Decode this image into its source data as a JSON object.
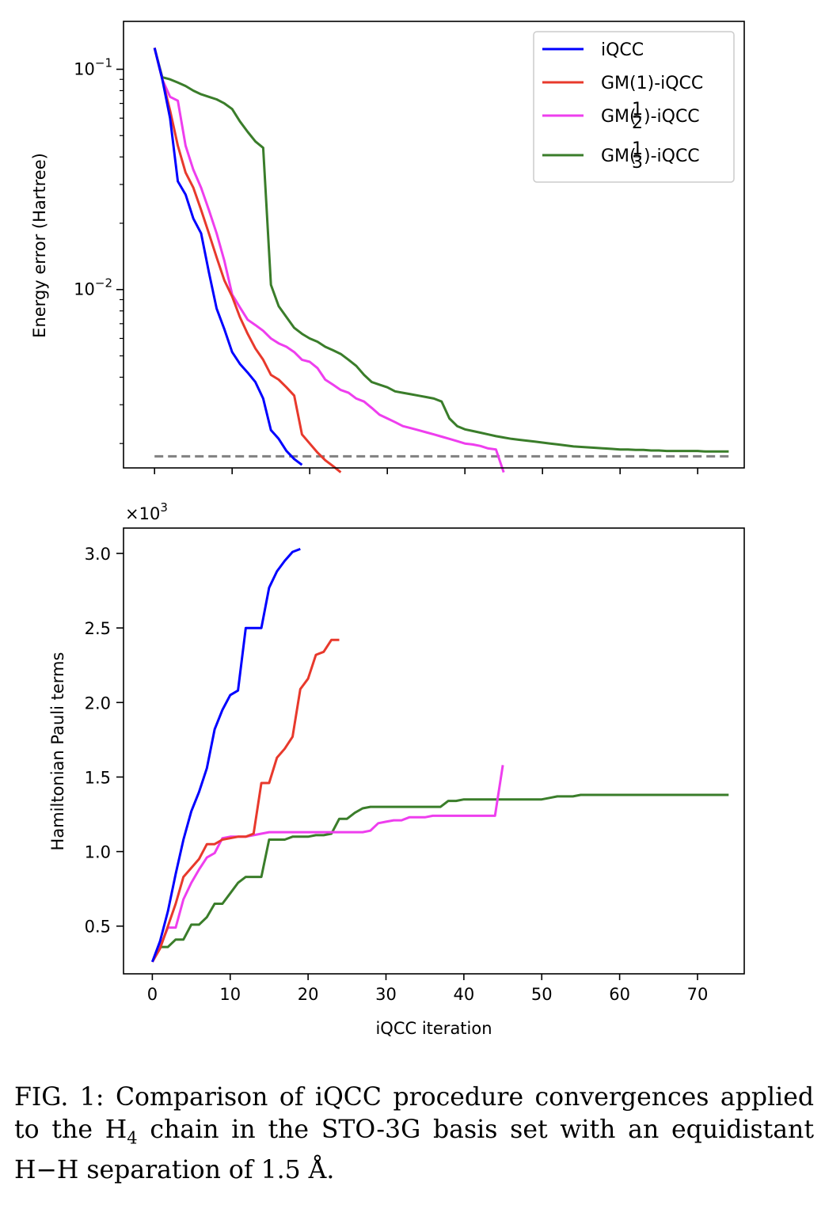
{
  "colors": {
    "iqcc": "#0000ff",
    "gm1": "#e8392c",
    "gmhalf": "#ee3eee",
    "gmthird": "#3a7d2a",
    "reference": "#808080",
    "axes": "#000000"
  },
  "caption": {
    "lead": "FIG. 1:",
    "part1": "Comparison of iQCC procedure convergences applied to the H",
    "subscript": "4",
    "part2": " chain in the STO-3G basis set with an equidistant H−H separation of 1.5 Å."
  },
  "chart_data": [
    {
      "type": "line",
      "name": "energy-error",
      "yscale": "log",
      "xlabel": "",
      "ylabel": "Energy error (Hartree)",
      "xlim": [
        -4,
        76
      ],
      "ylim": [
        0.00155,
        0.165
      ],
      "yticks": [
        {
          "value": 0.1,
          "mant": "10",
          "exp": "−1"
        },
        {
          "value": 0.01,
          "mant": "10",
          "exp": "−2"
        }
      ],
      "reference_line": {
        "value": 0.00175,
        "x": [
          0,
          74
        ],
        "style": "dashed"
      },
      "legend_position": "top-right",
      "series": [
        {
          "key": "iqcc",
          "label_pre": "iQCC",
          "frac_num": "",
          "frac_den": "",
          "label_post": "",
          "x": [
            0,
            1,
            2,
            3,
            4,
            5,
            6,
            7,
            8,
            9,
            10,
            11,
            12,
            13,
            14,
            15,
            16,
            17,
            18,
            19
          ],
          "y": [
            0.125,
            0.09,
            0.06,
            0.031,
            0.027,
            0.021,
            0.018,
            0.012,
            0.0082,
            0.0066,
            0.0052,
            0.0046,
            0.0042,
            0.0038,
            0.0032,
            0.0023,
            0.0021,
            0.00185,
            0.0017,
            0.0016
          ]
        },
        {
          "key": "gm1",
          "label_pre": "GM(1)-iQCC",
          "frac_num": "",
          "frac_den": "",
          "label_post": "",
          "x": [
            0,
            1,
            2,
            3,
            4,
            5,
            6,
            7,
            8,
            9,
            10,
            11,
            12,
            13,
            14,
            15,
            16,
            17,
            18,
            19,
            20,
            21,
            22,
            23,
            24
          ],
          "y": [
            0.125,
            0.09,
            0.065,
            0.045,
            0.034,
            0.029,
            0.023,
            0.018,
            0.014,
            0.011,
            0.0093,
            0.0075,
            0.0063,
            0.0054,
            0.0048,
            0.0041,
            0.0039,
            0.0036,
            0.0033,
            0.0022,
            0.002,
            0.00182,
            0.00168,
            0.00158,
            0.00148
          ]
        },
        {
          "key": "gmhalf",
          "label_pre": "GM(",
          "frac_num": "1",
          "frac_den": "2",
          "label_post": ")-iQCC",
          "x": [
            0,
            1,
            2,
            3,
            4,
            5,
            6,
            7,
            8,
            9,
            10,
            11,
            12,
            13,
            14,
            15,
            16,
            17,
            18,
            19,
            20,
            21,
            22,
            23,
            24,
            25,
            26,
            27,
            28,
            29,
            30,
            31,
            32,
            33,
            34,
            35,
            36,
            37,
            38,
            39,
            40,
            41,
            42,
            43,
            44,
            45
          ],
          "y": [
            0.125,
            0.09,
            0.075,
            0.072,
            0.045,
            0.035,
            0.029,
            0.023,
            0.018,
            0.0135,
            0.0095,
            0.0083,
            0.0073,
            0.0069,
            0.0065,
            0.006,
            0.0057,
            0.0055,
            0.0052,
            0.0048,
            0.0047,
            0.0044,
            0.0039,
            0.0037,
            0.0035,
            0.0034,
            0.0032,
            0.0031,
            0.0029,
            0.0027,
            0.0026,
            0.0025,
            0.0024,
            0.00235,
            0.0023,
            0.00225,
            0.0022,
            0.00215,
            0.0021,
            0.00205,
            0.002,
            0.00198,
            0.00195,
            0.0019,
            0.00188,
            0.00148
          ]
        },
        {
          "key": "gmthird",
          "label_pre": "GM(",
          "frac_num": "1",
          "frac_den": "3",
          "label_post": ")-iQCC",
          "x": [
            0,
            1,
            2,
            3,
            4,
            5,
            6,
            7,
            8,
            9,
            10,
            11,
            12,
            13,
            14,
            15,
            16,
            17,
            18,
            19,
            20,
            21,
            22,
            23,
            24,
            25,
            26,
            27,
            28,
            29,
            30,
            31,
            32,
            33,
            34,
            35,
            36,
            37,
            38,
            39,
            40,
            41,
            42,
            43,
            44,
            45,
            46,
            47,
            48,
            49,
            50,
            51,
            52,
            53,
            54,
            55,
            56,
            57,
            58,
            59,
            60,
            61,
            62,
            63,
            64,
            65,
            66,
            67,
            68,
            69,
            70,
            71,
            72,
            73,
            74
          ],
          "y": [
            0.125,
            0.092,
            0.09,
            0.087,
            0.084,
            0.08,
            0.077,
            0.075,
            0.073,
            0.07,
            0.066,
            0.058,
            0.052,
            0.047,
            0.044,
            0.0105,
            0.0084,
            0.0075,
            0.0067,
            0.0063,
            0.006,
            0.0058,
            0.0055,
            0.0053,
            0.0051,
            0.0048,
            0.0045,
            0.0041,
            0.0038,
            0.0037,
            0.0036,
            0.00345,
            0.0034,
            0.00335,
            0.0033,
            0.00325,
            0.0032,
            0.0031,
            0.0026,
            0.0024,
            0.00232,
            0.00228,
            0.00224,
            0.0022,
            0.00216,
            0.00213,
            0.0021,
            0.00208,
            0.00206,
            0.00204,
            0.00202,
            0.002,
            0.00198,
            0.00196,
            0.00194,
            0.00193,
            0.00192,
            0.00191,
            0.0019,
            0.00189,
            0.00188,
            0.00188,
            0.00187,
            0.00187,
            0.00186,
            0.00186,
            0.00185,
            0.00185,
            0.00185,
            0.00185,
            0.00185,
            0.00184,
            0.00184,
            0.00184,
            0.00184
          ]
        }
      ]
    },
    {
      "type": "line",
      "name": "pauli-terms",
      "xlabel": "iQCC iteration",
      "ylabel": "Hamiltonian Pauli terms",
      "offset_label": {
        "mant": "×10",
        "exp": "3"
      },
      "xlim": [
        -3.7,
        76
      ],
      "ylim": [
        0.18,
        3.17
      ],
      "xticks": [
        0,
        10,
        20,
        30,
        40,
        50,
        60,
        70
      ],
      "yticks": [
        "0.5",
        "1.0",
        "1.5",
        "2.0",
        "2.5",
        "3.0"
      ],
      "series": [
        {
          "key": "iqcc",
          "x": [
            0,
            1,
            2,
            3,
            4,
            5,
            6,
            7,
            8,
            9,
            10,
            11,
            12,
            13,
            14,
            15,
            16,
            17,
            18,
            19
          ],
          "y": [
            0.26,
            0.4,
            0.6,
            0.85,
            1.08,
            1.27,
            1.4,
            1.56,
            1.82,
            1.95,
            2.05,
            2.08,
            2.5,
            2.5,
            2.5,
            2.77,
            2.88,
            2.95,
            3.01,
            3.03
          ]
        },
        {
          "key": "gm1",
          "x": [
            0,
            1,
            2,
            3,
            4,
            5,
            6,
            7,
            8,
            9,
            10,
            11,
            12,
            13,
            14,
            15,
            16,
            17,
            18,
            19,
            20,
            21,
            22,
            23,
            24
          ],
          "y": [
            0.26,
            0.35,
            0.5,
            0.65,
            0.83,
            0.89,
            0.95,
            1.05,
            1.05,
            1.08,
            1.09,
            1.1,
            1.1,
            1.12,
            1.46,
            1.46,
            1.63,
            1.69,
            1.77,
            2.09,
            2.16,
            2.32,
            2.34,
            2.42,
            2.42
          ]
        },
        {
          "key": "gmhalf",
          "x": [
            0,
            1,
            2,
            3,
            4,
            5,
            6,
            7,
            8,
            9,
            10,
            11,
            12,
            13,
            14,
            15,
            16,
            17,
            18,
            19,
            20,
            21,
            22,
            23,
            24,
            25,
            26,
            27,
            28,
            29,
            30,
            31,
            32,
            33,
            34,
            35,
            36,
            37,
            38,
            39,
            40,
            41,
            42,
            43,
            44,
            45
          ],
          "y": [
            0.26,
            0.36,
            0.49,
            0.49,
            0.68,
            0.79,
            0.88,
            0.96,
            0.99,
            1.09,
            1.1,
            1.1,
            1.1,
            1.11,
            1.12,
            1.13,
            1.13,
            1.13,
            1.13,
            1.13,
            1.13,
            1.13,
            1.13,
            1.13,
            1.13,
            1.13,
            1.13,
            1.13,
            1.14,
            1.19,
            1.2,
            1.21,
            1.21,
            1.23,
            1.23,
            1.23,
            1.24,
            1.24,
            1.24,
            1.24,
            1.24,
            1.24,
            1.24,
            1.24,
            1.24,
            1.58
          ]
        },
        {
          "key": "gmthird",
          "x": [
            0,
            1,
            2,
            3,
            4,
            5,
            6,
            7,
            8,
            9,
            10,
            11,
            12,
            13,
            14,
            15,
            16,
            17,
            18,
            19,
            20,
            21,
            22,
            23,
            24,
            25,
            26,
            27,
            28,
            29,
            30,
            31,
            32,
            33,
            34,
            35,
            36,
            37,
            38,
            39,
            40,
            41,
            42,
            43,
            44,
            45,
            46,
            47,
            48,
            49,
            50,
            51,
            52,
            53,
            54,
            55,
            56,
            57,
            58,
            59,
            60,
            61,
            62,
            63,
            64,
            65,
            66,
            67,
            68,
            69,
            70,
            71,
            72,
            73,
            74
          ],
          "y": [
            0.26,
            0.36,
            0.36,
            0.41,
            0.41,
            0.51,
            0.51,
            0.56,
            0.65,
            0.65,
            0.72,
            0.79,
            0.83,
            0.83,
            0.83,
            1.08,
            1.08,
            1.08,
            1.1,
            1.1,
            1.1,
            1.11,
            1.11,
            1.12,
            1.22,
            1.22,
            1.26,
            1.29,
            1.3,
            1.3,
            1.3,
            1.3,
            1.3,
            1.3,
            1.3,
            1.3,
            1.3,
            1.3,
            1.34,
            1.34,
            1.35,
            1.35,
            1.35,
            1.35,
            1.35,
            1.35,
            1.35,
            1.35,
            1.35,
            1.35,
            1.35,
            1.36,
            1.37,
            1.37,
            1.37,
            1.38,
            1.38,
            1.38,
            1.38,
            1.38,
            1.38,
            1.38,
            1.38,
            1.38,
            1.38,
            1.38,
            1.38,
            1.38,
            1.38,
            1.38,
            1.38,
            1.38,
            1.38,
            1.38,
            1.38
          ]
        }
      ]
    }
  ]
}
